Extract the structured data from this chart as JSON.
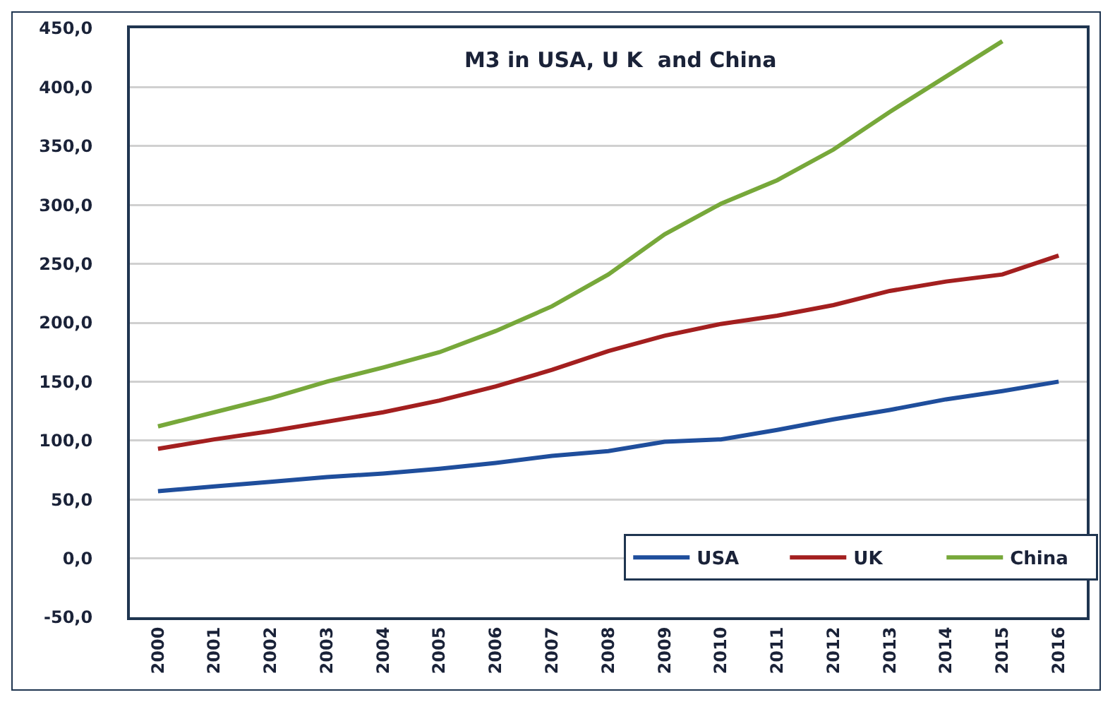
{
  "chart_data": {
    "type": "line",
    "title": "M3 in USA, U K  and China",
    "categories": [
      "2000",
      "2001",
      "2002",
      "2003",
      "2004",
      "2005",
      "2006",
      "2007",
      "2008",
      "2009",
      "2010",
      "2011",
      "2012",
      "2013",
      "2014",
      "2015",
      "2016"
    ],
    "series": [
      {
        "name": "USA",
        "color": "#1f4e9c",
        "values": [
          57,
          61,
          65,
          69,
          72,
          76,
          81,
          87,
          91,
          99,
          101,
          109,
          118,
          126,
          135,
          142,
          150
        ]
      },
      {
        "name": "UK",
        "color": "#a31f1f",
        "values": [
          93,
          101,
          108,
          116,
          124,
          134,
          146,
          160,
          176,
          189,
          199,
          206,
          215,
          227,
          235,
          241,
          257
        ]
      },
      {
        "name": "China",
        "color": "#77a83a",
        "values": [
          112,
          124,
          136,
          150,
          162,
          175,
          193,
          214,
          241,
          275,
          301,
          321,
          347,
          379,
          409,
          439,
          null
        ]
      }
    ],
    "ylim": [
      -50,
      450
    ],
    "yticks": [
      {
        "value": -50,
        "label": "-50,0"
      },
      {
        "value": 0,
        "label": "0,0"
      },
      {
        "value": 50,
        "label": "50,0"
      },
      {
        "value": 100,
        "label": "100,0"
      },
      {
        "value": 150,
        "label": "150,0"
      },
      {
        "value": 200,
        "label": "200,0"
      },
      {
        "value": 250,
        "label": "250,0"
      },
      {
        "value": 300,
        "label": "300,0"
      },
      {
        "value": 350,
        "label": "350,0"
      },
      {
        "value": 400,
        "label": "400,0"
      },
      {
        "value": 450,
        "label": "450,0"
      }
    ],
    "grid": "y",
    "legend": "bottom right"
  }
}
